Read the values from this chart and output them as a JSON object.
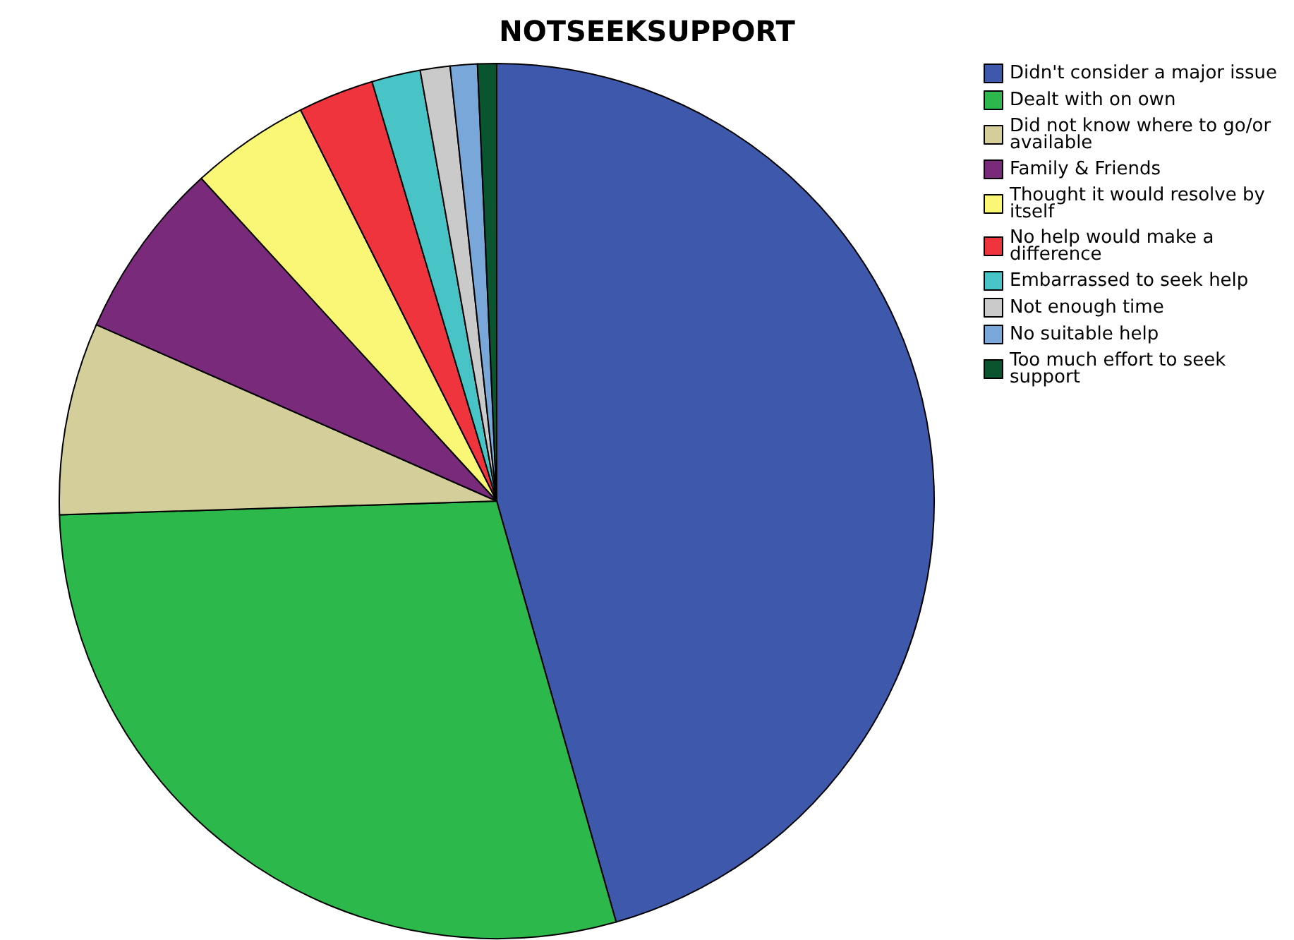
{
  "chart_data": {
    "type": "pie",
    "title": "NOTSEEKSUPPORT",
    "categories": [
      "Didn't consider a major issue",
      "Dealt with on own",
      "Did not know where to go/or available",
      "Family & Friends",
      "Thought it would resolve by itself",
      "No help would make a difference",
      "Embarrassed to seek help",
      "Not enough time",
      "No suitable help",
      "Too much effort to seek support"
    ],
    "values": [
      45.6,
      28.9,
      7.1,
      6.6,
      4.4,
      2.8,
      1.8,
      1.1,
      1.0,
      0.7
    ],
    "colors": [
      "#3e58ac",
      "#2db84b",
      "#d4ce9a",
      "#7a2a7b",
      "#fbf776",
      "#ef343e",
      "#48c3c6",
      "#cacaca",
      "#7aa7d9",
      "#0b5430"
    ],
    "legend": "top right"
  }
}
